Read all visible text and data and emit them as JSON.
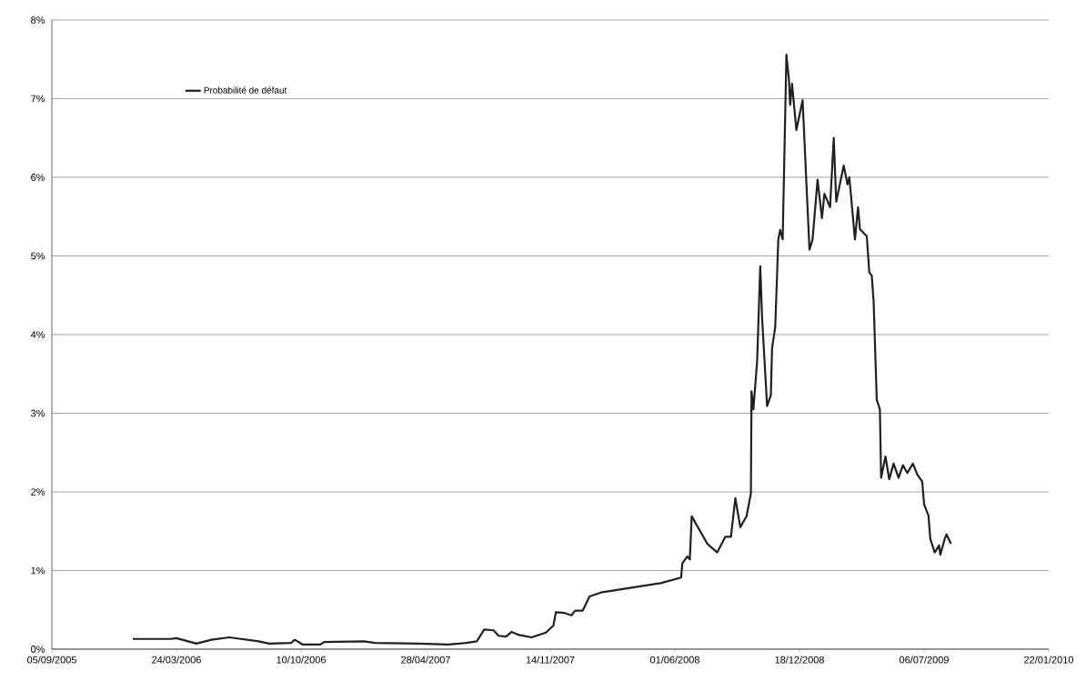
{
  "chart_data": {
    "type": "line",
    "x": [
      "2006-01-13",
      "2006-03-15",
      "2006-03-24",
      "2006-04-25",
      "2006-05-19",
      "2006-06-17",
      "2006-08-03",
      "2006-08-20",
      "2006-09-24",
      "2006-09-30",
      "2006-10-12",
      "2006-11-10",
      "2006-11-16",
      "2007-01-19",
      "2007-02-06",
      "2007-04-17",
      "2007-06-03",
      "2007-07-02",
      "2007-07-19",
      "2007-07-31",
      "2007-08-15",
      "2007-08-23",
      "2007-09-04",
      "2007-09-13",
      "2007-09-25",
      "2007-10-15",
      "2007-11-07",
      "2007-11-19",
      "2007-11-23",
      "2007-12-07",
      "2007-12-18",
      "2007-12-24",
      "2008-01-05",
      "2008-01-16",
      "2008-02-03",
      "2008-05-09",
      "2008-06-11",
      "2008-06-13",
      "2008-06-21",
      "2008-06-25",
      "2008-06-28",
      "2008-07-23",
      "2008-08-08",
      "2008-08-21",
      "2008-08-30",
      "2008-09-06",
      "2008-09-14",
      "2008-09-24",
      "2008-10-01",
      "2008-10-02",
      "2008-10-05",
      "2008-10-11",
      "2008-10-16",
      "2008-10-19",
      "2008-10-27",
      "2008-11-02",
      "2008-11-04",
      "2008-11-09",
      "2008-11-14",
      "2008-11-17",
      "2008-11-21",
      "2008-11-27",
      "2008-12-01",
      "2008-12-03",
      "2008-12-06",
      "2008-12-13",
      "2008-12-23",
      "2009-01-03",
      "2009-01-08",
      "2009-01-16",
      "2009-01-23",
      "2009-01-27",
      "2009-02-05",
      "2009-02-11",
      "2009-02-15",
      "2009-02-27",
      "2009-03-05",
      "2009-03-08",
      "2009-03-17",
      "2009-03-22",
      "2009-03-25",
      "2009-04-05",
      "2009-04-09",
      "2009-04-13",
      "2009-04-16",
      "2009-04-21",
      "2009-04-26",
      "2009-04-28",
      "2009-05-05",
      "2009-05-11",
      "2009-05-18",
      "2009-05-26",
      "2009-06-02",
      "2009-06-09",
      "2009-06-18",
      "2009-06-25",
      "2009-07-03",
      "2009-07-06",
      "2009-07-13",
      "2009-07-16",
      "2009-07-23",
      "2009-07-30",
      "2009-08-01",
      "2009-08-08",
      "2009-08-11",
      "2009-08-18"
    ],
    "series": [
      {
        "name": "Probabilité de défaut",
        "color": "#231f20",
        "values": [
          0.13,
          0.13,
          0.14,
          0.07,
          0.12,
          0.15,
          0.1,
          0.07,
          0.08,
          0.12,
          0.06,
          0.06,
          0.09,
          0.1,
          0.08,
          0.07,
          0.06,
          0.08,
          0.1,
          0.25,
          0.24,
          0.17,
          0.16,
          0.22,
          0.18,
          0.15,
          0.21,
          0.3,
          0.47,
          0.46,
          0.43,
          0.49,
          0.49,
          0.67,
          0.72,
          0.84,
          0.91,
          1.09,
          1.18,
          1.14,
          1.69,
          1.34,
          1.23,
          1.43,
          1.43,
          1.92,
          1.55,
          1.69,
          1.98,
          3.28,
          3.05,
          3.66,
          4.87,
          4.21,
          3.09,
          3.23,
          3.83,
          4.09,
          5.21,
          5.33,
          5.21,
          7.56,
          7.25,
          6.92,
          7.19,
          6.6,
          6.98,
          5.08,
          5.21,
          5.97,
          5.48,
          5.79,
          5.62,
          6.5,
          5.69,
          6.15,
          5.91,
          6.0,
          5.21,
          5.62,
          5.34,
          5.25,
          4.79,
          4.75,
          4.42,
          3.17,
          3.05,
          2.18,
          2.45,
          2.16,
          2.36,
          2.18,
          2.34,
          2.24,
          2.36,
          2.22,
          2.13,
          1.84,
          1.7,
          1.4,
          1.23,
          1.32,
          1.2,
          1.4,
          1.46,
          1.34
        ]
      }
    ],
    "xlim": [
      "2005-09-05",
      "2010-01-22"
    ],
    "xticks": [
      {
        "value": "2005-09-05",
        "label": "05/09/2005"
      },
      {
        "value": "2006-03-24",
        "label": "24/03/2006"
      },
      {
        "value": "2006-10-10",
        "label": "10/10/2006"
      },
      {
        "value": "2007-04-28",
        "label": "28/04/2007"
      },
      {
        "value": "2007-11-14",
        "label": "14/11/2007"
      },
      {
        "value": "2008-06-01",
        "label": "01/06/2008"
      },
      {
        "value": "2008-12-18",
        "label": "18/12/2008"
      },
      {
        "value": "2009-07-06",
        "label": "06/07/2009"
      },
      {
        "value": "2010-01-22",
        "label": "22/01/2010"
      }
    ],
    "ylim": [
      0,
      8
    ],
    "yticks": [
      {
        "value": 0,
        "label": "0%"
      },
      {
        "value": 1,
        "label": "1%"
      },
      {
        "value": 2,
        "label": "2%"
      },
      {
        "value": 3,
        "label": "3%"
      },
      {
        "value": 4,
        "label": "4%"
      },
      {
        "value": 5,
        "label": "5%"
      },
      {
        "value": 6,
        "label": "6%"
      },
      {
        "value": 7,
        "label": "7%"
      },
      {
        "value": 8,
        "label": "8%"
      }
    ],
    "grid": "y",
    "legend": "top left",
    "marker": "none",
    "line_style": "solid"
  }
}
